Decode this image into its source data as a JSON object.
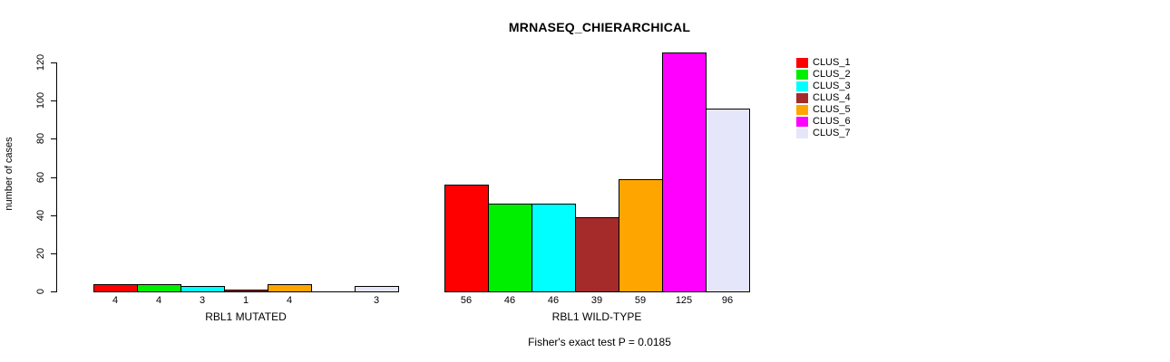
{
  "chart_data": {
    "type": "bar",
    "title": "MRNASEQ_CHIERARCHICAL",
    "xlabel": "",
    "ylabel": "number of cases",
    "ylim": [
      0,
      120
    ],
    "yticks": [
      0,
      20,
      40,
      60,
      80,
      100,
      120
    ],
    "grid": false,
    "legend_position": "right",
    "series": [
      {
        "name": "CLUS_1",
        "color": "#FF0000",
        "values": [
          4,
          56
        ]
      },
      {
        "name": "CLUS_2",
        "color": "#00EE00",
        "values": [
          4,
          46
        ]
      },
      {
        "name": "CLUS_3",
        "color": "#00FFFF",
        "values": [
          3,
          46
        ]
      },
      {
        "name": "CLUS_4",
        "color": "#A52A2A",
        "values": [
          1,
          39
        ]
      },
      {
        "name": "CLUS_5",
        "color": "#FFA500",
        "values": [
          4,
          59
        ]
      },
      {
        "name": "CLUS_6",
        "color": "#FF00FF",
        "values": [
          0,
          125
        ]
      },
      {
        "name": "CLUS_7",
        "color": "#E6E6FA",
        "values": [
          3,
          96
        ]
      }
    ],
    "groups": [
      {
        "label": "RBL1 MUTATED",
        "values": [
          4,
          4,
          3,
          1,
          4,
          0,
          3
        ],
        "bar_labels": [
          "4",
          "4",
          "3",
          "1",
          "4",
          "",
          "3"
        ]
      },
      {
        "label": "RBL1 WILD-TYPE",
        "values": [
          56,
          46,
          46,
          39,
          59,
          125,
          96
        ],
        "bar_labels": [
          "56",
          "46",
          "46",
          "39",
          "59",
          "125",
          "96"
        ]
      }
    ],
    "annotations": [
      "Fisher's exact test P = 0.0185"
    ],
    "footnote": "Fisher's exact test P = 0.0185"
  }
}
